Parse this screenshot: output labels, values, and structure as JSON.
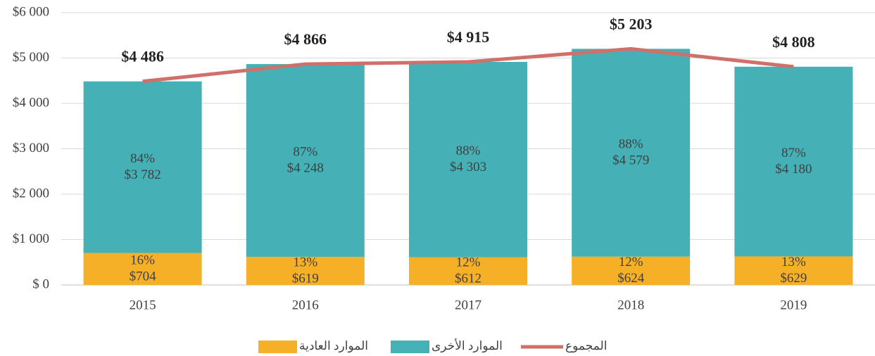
{
  "chart_data": {
    "type": "stacked-bar-line",
    "categories": [
      "2015",
      "2016",
      "2017",
      "2018",
      "2019"
    ],
    "series": [
      {
        "name": "الموارد العادية",
        "color": "#f5b027",
        "values": [
          704,
          619,
          612,
          624,
          629
        ],
        "value_labels": [
          "$704",
          "$619",
          "$612",
          "$624",
          "$629"
        ],
        "percent_labels": [
          "16%",
          "13%",
          "12%",
          "12%",
          "13%"
        ]
      },
      {
        "name": "الموارد الأخرى",
        "color": "#45b0b5",
        "values": [
          3782,
          4248,
          4303,
          4579,
          4180
        ],
        "value_labels": [
          "$3 782",
          "$4 248",
          "$4 303",
          "$4 579",
          "$4 180"
        ],
        "percent_labels": [
          "84%",
          "87%",
          "88%",
          "88%",
          "87%"
        ]
      },
      {
        "name": "المجموع",
        "color": "#d0706a",
        "type": "line",
        "values": [
          4486,
          4866,
          4915,
          5203,
          4808
        ],
        "value_labels": [
          "$4 486",
          "$4 866",
          "$4 915",
          "$5 203",
          "$4 808"
        ]
      }
    ],
    "ylim": [
      0,
      6000
    ],
    "yticks": [
      {
        "value": 0,
        "label": "$ 0"
      },
      {
        "value": 1000,
        "label": "$1 000"
      },
      {
        "value": 2000,
        "label": "$2 000"
      },
      {
        "value": 3000,
        "label": "$3 000"
      },
      {
        "value": 4000,
        "label": "$4 000"
      },
      {
        "value": 5000,
        "label": "$5 000"
      },
      {
        "value": 6000,
        "label": "$6 000"
      }
    ],
    "grid": true,
    "legend": "bottom"
  }
}
